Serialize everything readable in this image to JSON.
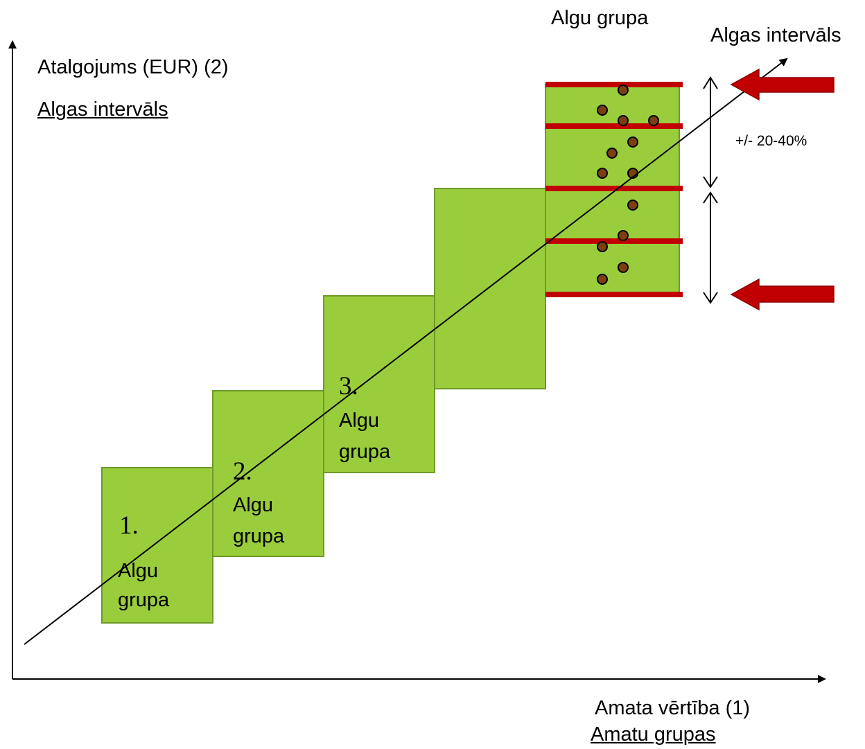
{
  "axes": {
    "y_label": "Atalgojums (EUR) (2)",
    "y_sublabel": "Algas intervāls",
    "x_label": "Amata vērtība (1)",
    "x_sublabel": "Amatu grupas"
  },
  "top_labels": {
    "grade": "Algu grupa",
    "range": "Algas intervāls"
  },
  "range_note": "+/- 20-40%",
  "groups": [
    {
      "number": "1.",
      "word1": "Algu",
      "word2": "grupa"
    },
    {
      "number": "2.",
      "word1": "Algu",
      "word2": "grupa"
    },
    {
      "number": "3.",
      "word1": "Algu",
      "word2": "grupa"
    }
  ],
  "colors": {
    "box_fill": "#9acd3c",
    "box_border": "#6f9a2a",
    "band_line": "#c00000",
    "arrow_fill": "#c00000",
    "dot_fill": "#7b3f12"
  }
}
